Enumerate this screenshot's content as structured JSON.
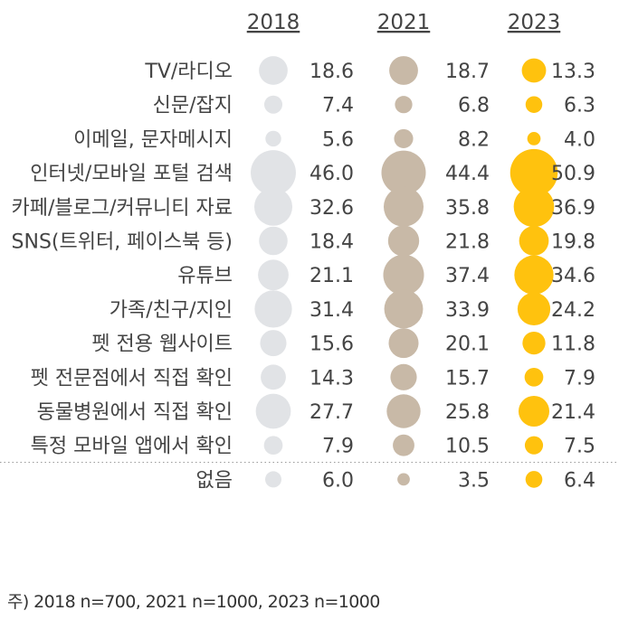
{
  "chart_data": {
    "type": "bubble-table",
    "years": [
      "2018",
      "2021",
      "2023"
    ],
    "colors": [
      "#e1e3e6",
      "#c8b9a7",
      "#ffc20e"
    ],
    "categories": [
      "TV/라디오",
      "신문/잡지",
      "이메일, 문자메시지",
      "인터넷/모바일 포털 검색",
      "카페/블로그/커뮤니티 자료",
      "SNS(트위터, 페이스북 등)",
      "유튜브",
      "가족/친구/지인",
      "펫 전용 웹사이트",
      "펫 전문점에서 직접 확인",
      "동물병원에서 직접 확인",
      "특정 모바일 앱에서 확인",
      "없음"
    ],
    "series": [
      {
        "name": "2018",
        "values": [
          18.6,
          7.4,
          5.6,
          46.0,
          32.6,
          18.4,
          21.1,
          31.4,
          15.6,
          14.3,
          27.7,
          7.9,
          6.0
        ],
        "labels": [
          "18.6",
          "7.4",
          "5.6",
          "46.0",
          "32.6",
          "18.4",
          "21.1",
          "31.4",
          "15.6",
          "14.3",
          "27.7",
          "7.9",
          "6.0"
        ]
      },
      {
        "name": "2021",
        "values": [
          18.7,
          6.8,
          8.2,
          44.4,
          35.8,
          21.8,
          37.4,
          33.9,
          20.1,
          15.7,
          25.8,
          10.5,
          3.5
        ],
        "labels": [
          "18.7",
          "6.8",
          "8.2",
          "44.4",
          "35.8",
          "21.8",
          "37.4",
          "33.9",
          "20.1",
          "15.7",
          "25.8",
          "10.5",
          "3.5"
        ]
      },
      {
        "name": "2023",
        "values": [
          13.3,
          6.3,
          4.0,
          50.9,
          36.9,
          19.8,
          34.6,
          24.2,
          11.8,
          7.9,
          21.4,
          7.5,
          6.4
        ],
        "labels": [
          "13.3",
          "6.3",
          "4.0",
          "50.9",
          "36.9",
          "19.8",
          "34.6",
          "24.2",
          "11.8",
          "7.9",
          "21.4",
          "7.5",
          "6.4"
        ]
      }
    ]
  },
  "footnote": "주) 2018 n=700, 2021 n=1000, 2023 n=1000"
}
